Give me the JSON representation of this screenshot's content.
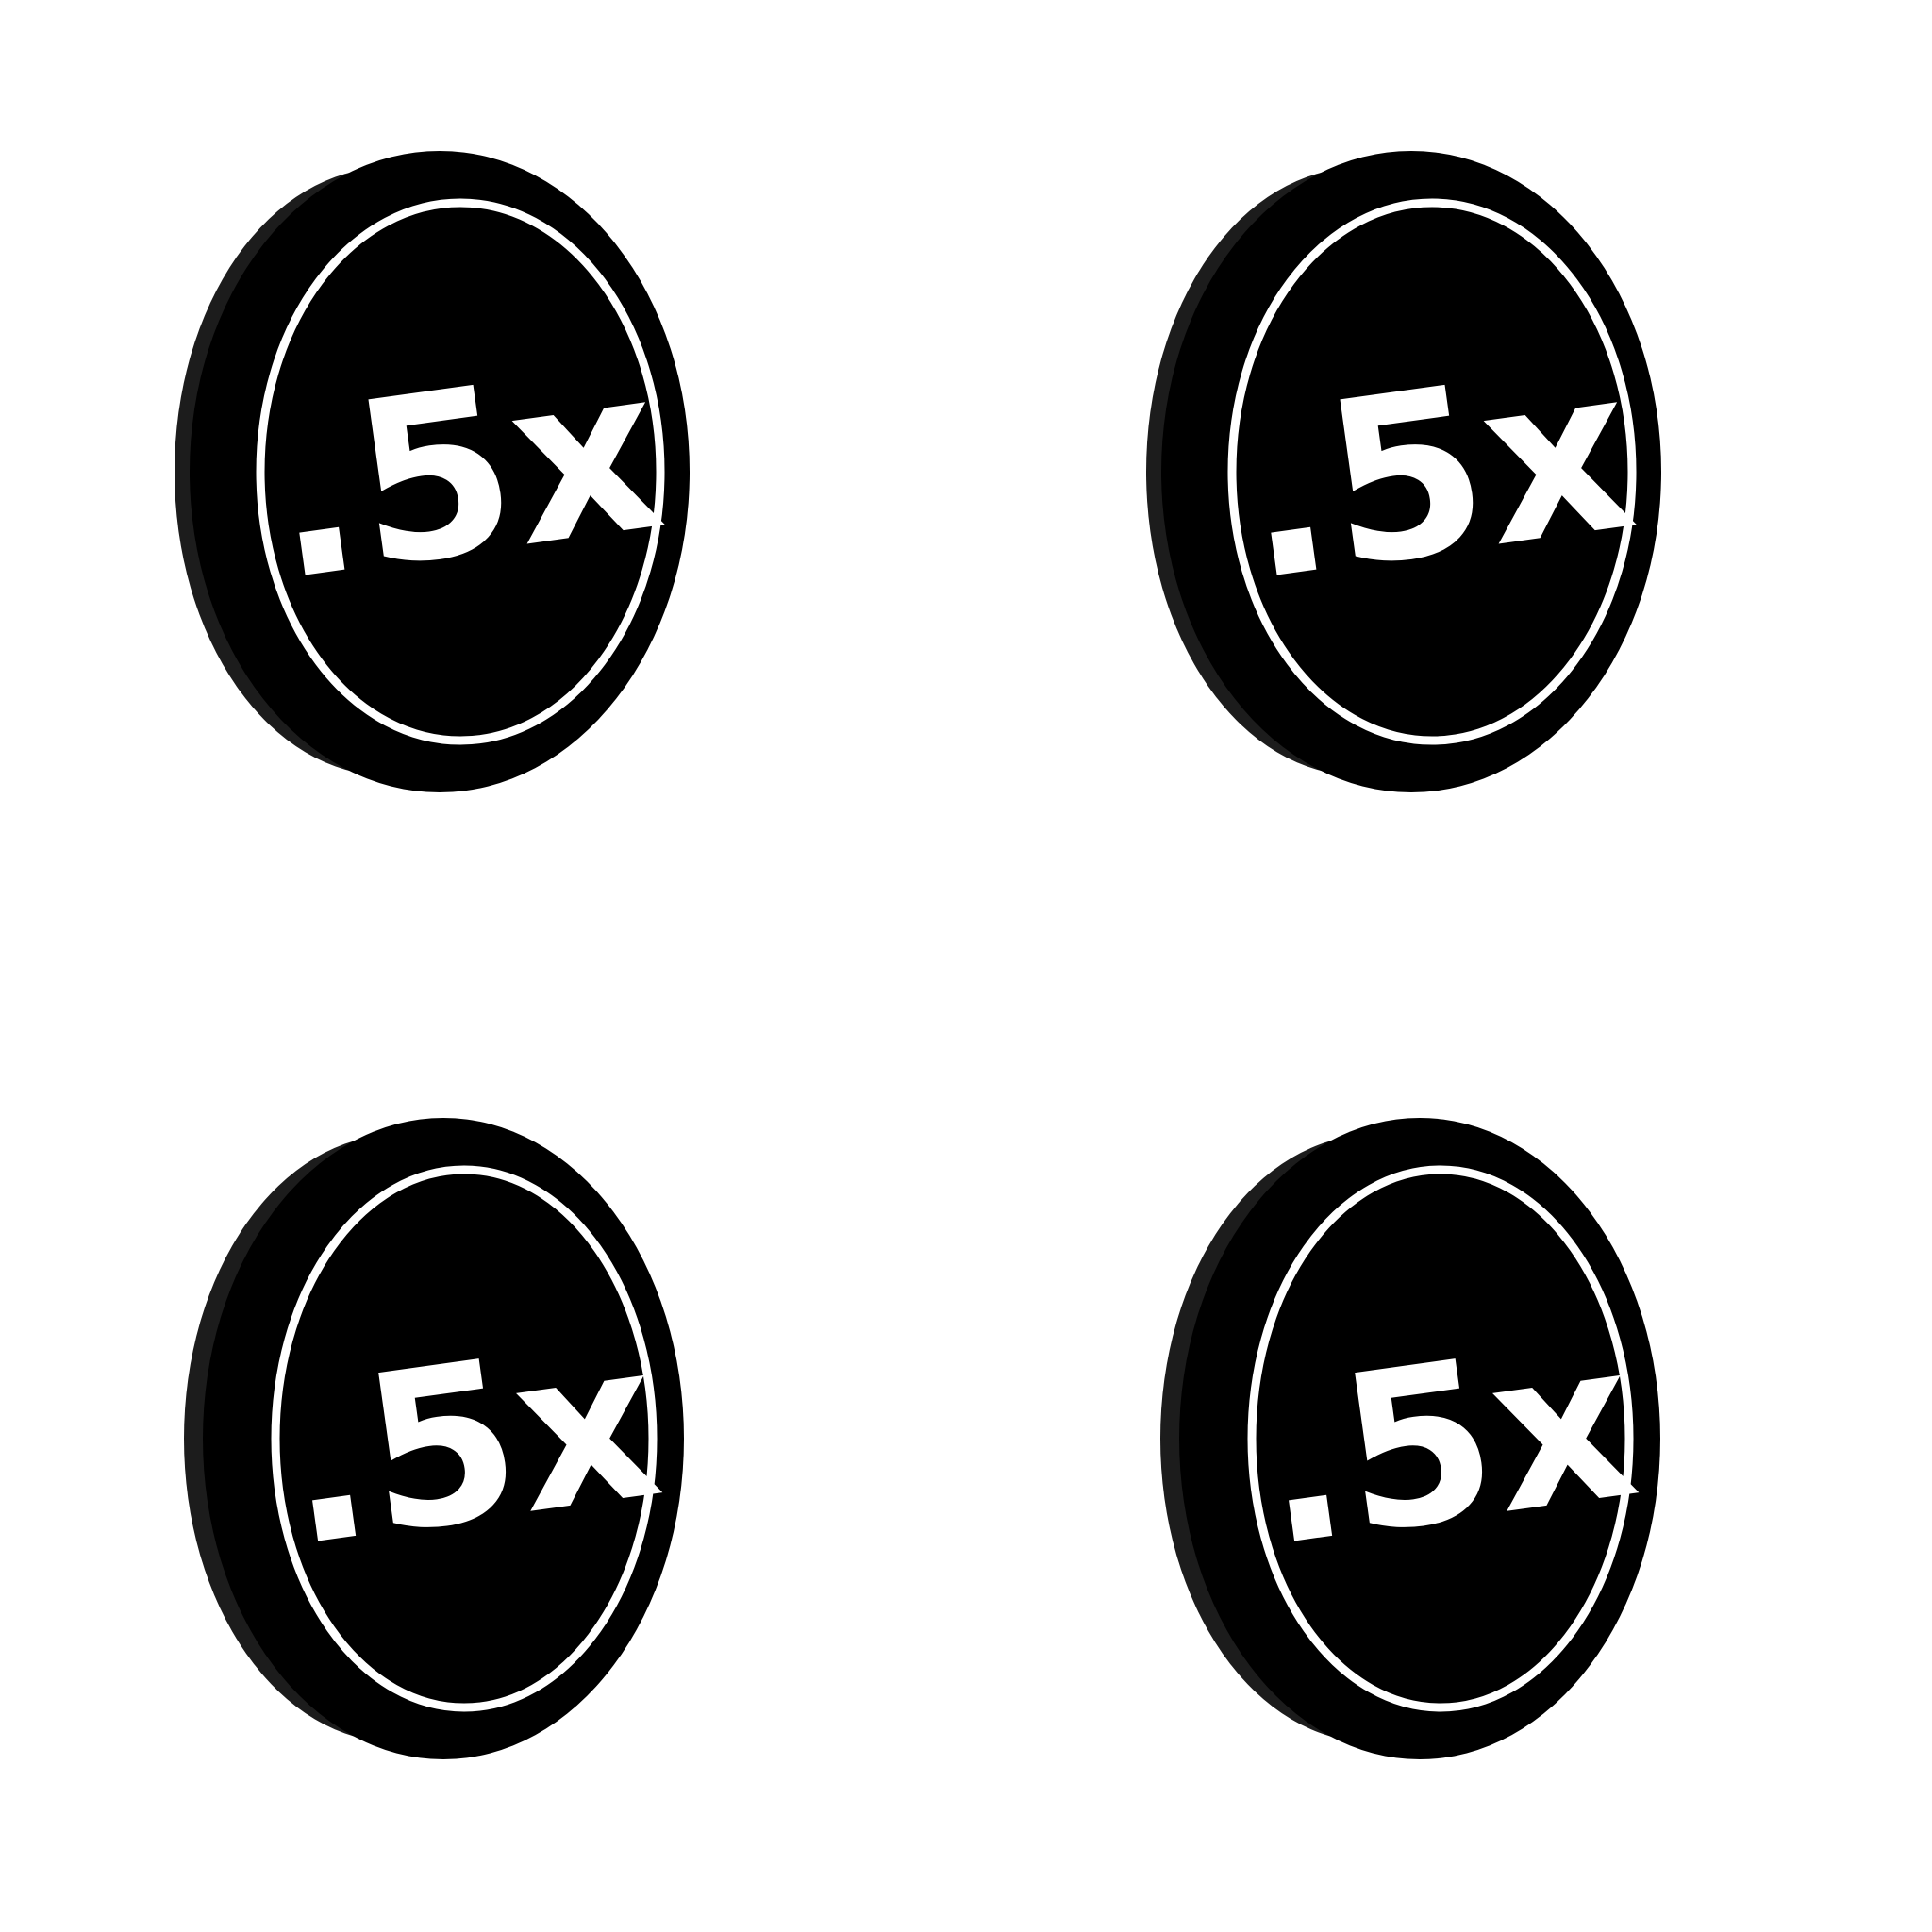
{
  "coins": [
    {
      "id": "coin-top-left",
      "label": ".5x"
    },
    {
      "id": "coin-top-right",
      "label": ".5x"
    },
    {
      "id": "coin-bottom-left",
      "label": ".5x"
    },
    {
      "id": "coin-bottom-right",
      "label": ".5x"
    }
  ],
  "colors": {
    "background": "#ffffff",
    "coin_face": "#000000",
    "coin_edge": "#1c1c1c",
    "ring": "#ffffff",
    "glyph": "#ffffff"
  },
  "icon": "half-speed-coin-icon"
}
